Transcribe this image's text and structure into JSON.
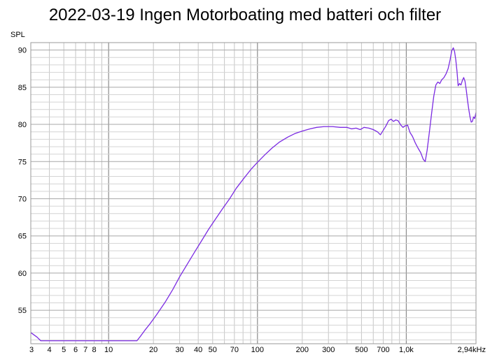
{
  "chart_data": {
    "type": "line",
    "title": "2022-03-19 Ingen Motorboating med batteri och filter",
    "ylabel": "SPL",
    "xscale": "log",
    "xlim": [
      3,
      2940
    ],
    "ylim": [
      50.5,
      91
    ],
    "grid": true,
    "x_tick_labels": [
      {
        "x": 3,
        "label": "3"
      },
      {
        "x": 4,
        "label": "4"
      },
      {
        "x": 5,
        "label": "5"
      },
      {
        "x": 6,
        "label": "6"
      },
      {
        "x": 7,
        "label": "7"
      },
      {
        "x": 8,
        "label": "8"
      },
      {
        "x": 10,
        "label": "10"
      },
      {
        "x": 20,
        "label": "20"
      },
      {
        "x": 30,
        "label": "30"
      },
      {
        "x": 40,
        "label": "40"
      },
      {
        "x": 50,
        "label": "50"
      },
      {
        "x": 70,
        "label": "70"
      },
      {
        "x": 100,
        "label": "100"
      },
      {
        "x": 200,
        "label": "200"
      },
      {
        "x": 300,
        "label": "300"
      },
      {
        "x": 500,
        "label": "500"
      },
      {
        "x": 700,
        "label": "700"
      },
      {
        "x": 1000,
        "label": "1,0k"
      },
      {
        "x": 2940,
        "label": "2,94kHz"
      }
    ],
    "y_ticks": [
      55,
      60,
      65,
      70,
      75,
      80,
      85,
      90
    ],
    "series": [
      {
        "color": "#7b2be2",
        "points": [
          [
            3,
            52.0
          ],
          [
            3.3,
            51.4
          ],
          [
            3.5,
            50.9
          ],
          [
            15.5,
            50.9
          ],
          [
            16.5,
            51.6
          ],
          [
            17.5,
            52.3
          ],
          [
            19,
            53.2
          ],
          [
            21,
            54.4
          ],
          [
            24,
            56.1
          ],
          [
            27,
            57.8
          ],
          [
            30,
            59.5
          ],
          [
            34,
            61.3
          ],
          [
            38,
            62.9
          ],
          [
            42,
            64.3
          ],
          [
            47,
            65.9
          ],
          [
            52,
            67.2
          ],
          [
            58,
            68.6
          ],
          [
            65,
            70.0
          ],
          [
            72,
            71.4
          ],
          [
            80,
            72.6
          ],
          [
            90,
            73.9
          ],
          [
            100,
            74.9
          ],
          [
            112,
            75.9
          ],
          [
            125,
            76.8
          ],
          [
            140,
            77.6
          ],
          [
            160,
            78.3
          ],
          [
            180,
            78.8
          ],
          [
            200,
            79.1
          ],
          [
            225,
            79.4
          ],
          [
            250,
            79.6
          ],
          [
            280,
            79.7
          ],
          [
            320,
            79.7
          ],
          [
            360,
            79.6
          ],
          [
            400,
            79.6
          ],
          [
            430,
            79.4
          ],
          [
            460,
            79.5
          ],
          [
            490,
            79.3
          ],
          [
            520,
            79.6
          ],
          [
            560,
            79.5
          ],
          [
            600,
            79.3
          ],
          [
            640,
            79.0
          ],
          [
            670,
            78.6
          ],
          [
            700,
            79.2
          ],
          [
            730,
            79.8
          ],
          [
            760,
            80.5
          ],
          [
            790,
            80.7
          ],
          [
            820,
            80.4
          ],
          [
            850,
            80.6
          ],
          [
            880,
            80.5
          ],
          [
            920,
            79.9
          ],
          [
            950,
            79.6
          ],
          [
            980,
            79.8
          ],
          [
            1020,
            79.9
          ],
          [
            1060,
            78.9
          ],
          [
            1100,
            78.4
          ],
          [
            1150,
            77.5
          ],
          [
            1200,
            76.8
          ],
          [
            1250,
            76.2
          ],
          [
            1300,
            75.3
          ],
          [
            1340,
            75.0
          ],
          [
            1380,
            76.5
          ],
          [
            1430,
            79.0
          ],
          [
            1480,
            81.5
          ],
          [
            1530,
            83.8
          ],
          [
            1580,
            85.3
          ],
          [
            1630,
            85.7
          ],
          [
            1680,
            85.5
          ],
          [
            1730,
            86.0
          ],
          [
            1790,
            86.3
          ],
          [
            1850,
            86.8
          ],
          [
            1910,
            87.5
          ],
          [
            1970,
            88.7
          ],
          [
            2020,
            89.9
          ],
          [
            2070,
            90.3
          ],
          [
            2110,
            89.8
          ],
          [
            2150,
            88.7
          ],
          [
            2190,
            87.2
          ],
          [
            2230,
            85.2
          ],
          [
            2280,
            85.5
          ],
          [
            2330,
            85.3
          ],
          [
            2380,
            85.9
          ],
          [
            2430,
            86.3
          ],
          [
            2480,
            85.8
          ],
          [
            2530,
            84.6
          ],
          [
            2580,
            83.2
          ],
          [
            2630,
            82.0
          ],
          [
            2680,
            81.0
          ],
          [
            2730,
            80.3
          ],
          [
            2780,
            80.4
          ],
          [
            2830,
            81.0
          ],
          [
            2880,
            80.8
          ],
          [
            2940,
            81.6
          ]
        ]
      }
    ]
  }
}
